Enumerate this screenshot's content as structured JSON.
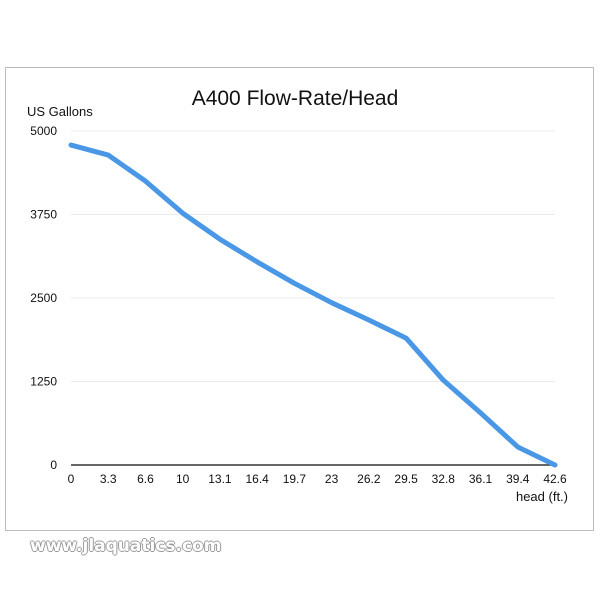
{
  "watermark": "www.jlaquatics.com",
  "colors": {
    "line": "#4a97e6",
    "grid": "#ebebeb",
    "axis": "#333333"
  },
  "chart_data": {
    "type": "line",
    "title": "A400 Flow-Rate/Head",
    "ylabel": "US Gallons",
    "xlabel": "head (ft.)",
    "ylim": [
      0,
      5000
    ],
    "yticks": [
      "0",
      "1250",
      "2500",
      "3750",
      "5000"
    ],
    "grid": true,
    "categories": [
      "0",
      "3.3",
      "6.6",
      "10",
      "13.1",
      "16.4",
      "19.7",
      "23",
      "26.2",
      "29.5",
      "32.8",
      "36.1",
      "39.4",
      "42.6"
    ],
    "series": [
      {
        "values": [
          4790,
          4640,
          4250,
          3770,
          3380,
          3040,
          2720,
          2430,
          2170,
          1900,
          1270,
          780,
          270,
          0
        ]
      }
    ]
  }
}
